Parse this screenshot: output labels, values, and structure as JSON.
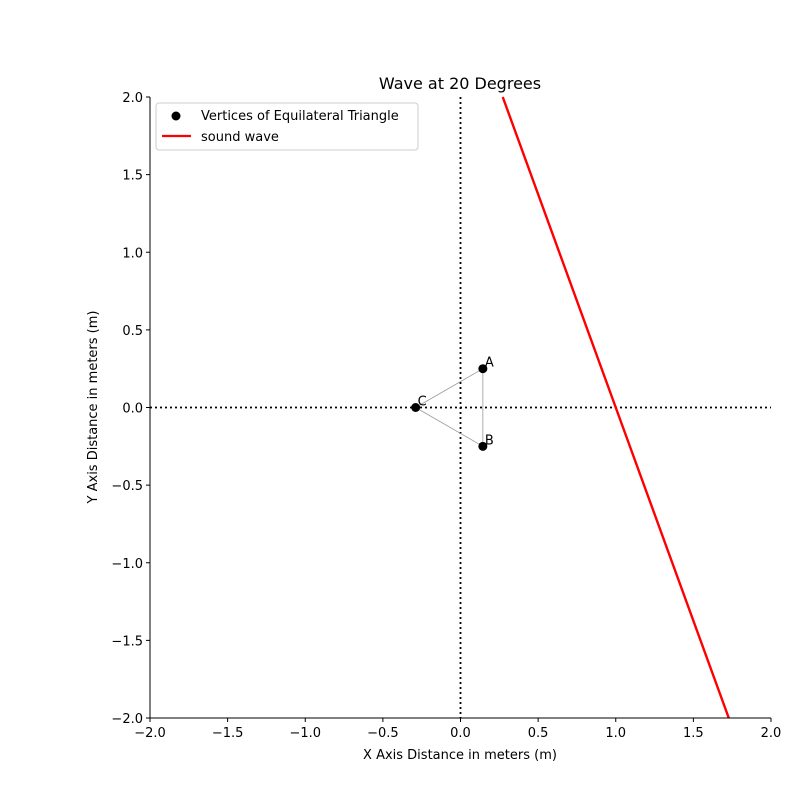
{
  "chart_data": {
    "type": "scatter",
    "title": "Wave at 20 Degrees",
    "xlabel": "X Axis Distance in meters (m)",
    "ylabel": "Y Axis Distance in meters (m)",
    "xlim": [
      -2.0,
      2.0
    ],
    "ylim": [
      -2.0,
      2.0
    ],
    "xticks": [
      "−2.0",
      "−1.5",
      "−1.0",
      "−0.5",
      "0.0",
      "0.5",
      "1.0",
      "1.5",
      "2.0"
    ],
    "yticks": [
      "−2.0",
      "−1.5",
      "−1.0",
      "−0.5",
      "0.0",
      "0.5",
      "1.0",
      "1.5",
      "2.0"
    ],
    "xtick_values": [
      -2.0,
      -1.5,
      -1.0,
      -0.5,
      0.0,
      0.5,
      1.0,
      1.5,
      2.0
    ],
    "ytick_values": [
      -2.0,
      -1.5,
      -1.0,
      -0.5,
      0.0,
      0.5,
      1.0,
      1.5,
      2.0
    ],
    "grid": false,
    "legend_position": "top-left",
    "series": [
      {
        "name": "Vertices of Equilateral Triangle",
        "kind": "scatter",
        "color": "#000000",
        "points": [
          {
            "label": "A",
            "x": 0.144,
            "y": 0.25
          },
          {
            "label": "B",
            "x": 0.144,
            "y": -0.25
          },
          {
            "label": "C",
            "x": -0.289,
            "y": 0.0
          }
        ]
      },
      {
        "name": "sound wave",
        "kind": "line",
        "color": "#ff0000",
        "x": [
          0.272,
          1.0,
          1.728
        ],
        "y": [
          2.0,
          0.0,
          -2.0
        ]
      }
    ],
    "triangle_edge_color": "#999999",
    "reference_lines": [
      {
        "orientation": "vertical",
        "value": 0.0,
        "style": "dotted",
        "color": "#000000"
      },
      {
        "orientation": "horizontal",
        "value": 0.0,
        "style": "dotted",
        "color": "#000000"
      }
    ]
  }
}
